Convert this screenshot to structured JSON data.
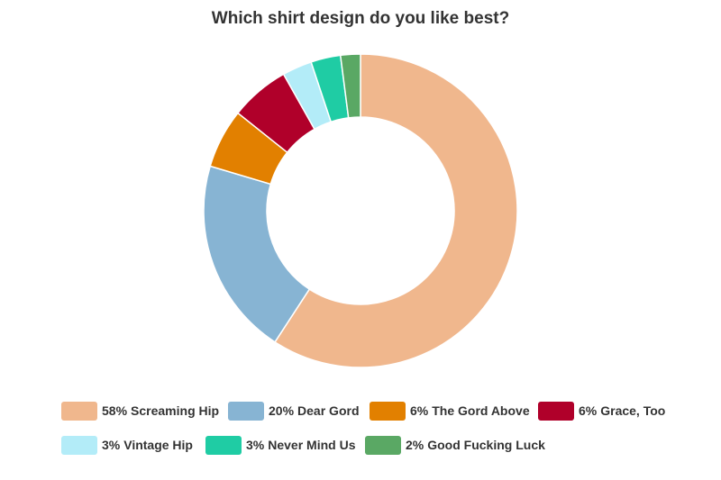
{
  "chart_data": {
    "type": "donut",
    "title": "Which shirt design do you like best?",
    "categories": [
      "Screaming Hip",
      "Dear Gord",
      "The Gord Above",
      "Grace, Too",
      "Vintage Hip",
      "Never Mind Us",
      "Good Fucking Luck"
    ],
    "values": [
      58,
      20,
      6,
      6,
      3,
      3,
      2
    ],
    "value_labels": [
      "58%",
      "20%",
      "6%",
      "6%",
      "3%",
      "3%",
      "2%"
    ],
    "colors": [
      "#f0b78d",
      "#87b4d3",
      "#e28000",
      "#b0002a",
      "#b3ecf8",
      "#1fcca4",
      "#5aa864"
    ]
  }
}
